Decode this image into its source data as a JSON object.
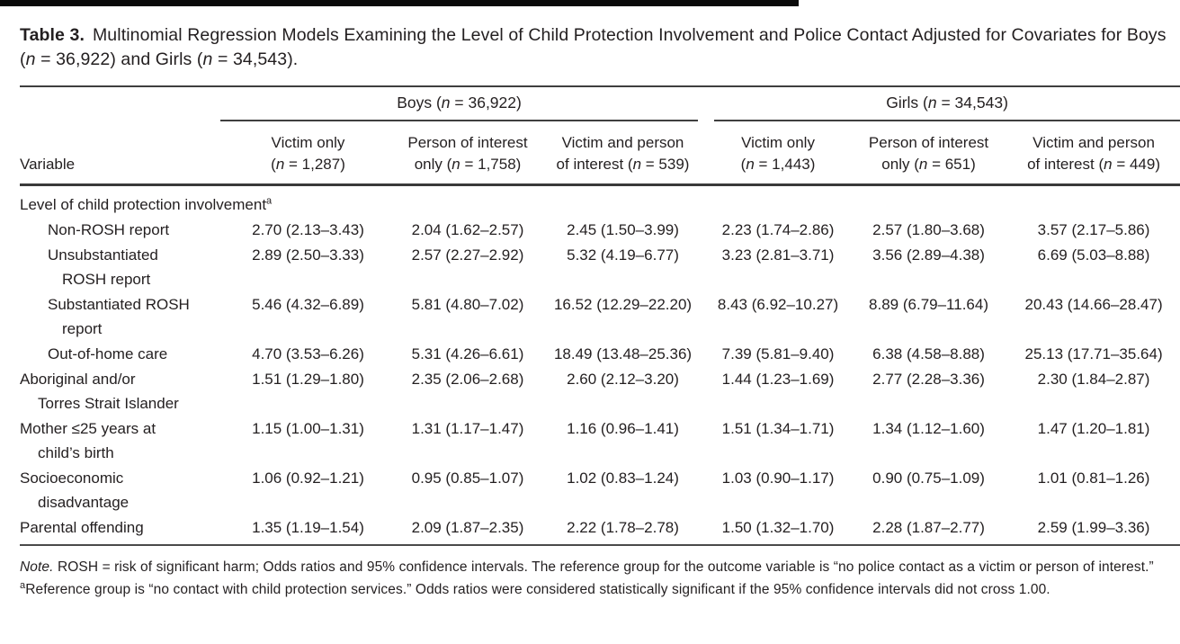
{
  "title": {
    "label": "Table 3.",
    "text": "Multinomial Regression Models Examining the Level of Child Protection Involvement and Police Contact Adjusted for Covariates for Boys (n = 36,922) and Girls (n = 34,543)."
  },
  "table": {
    "variable_header": "Variable",
    "group_headers": {
      "boys": "Boys (n = 36,922)",
      "girls": "Girls (n = 34,543)"
    },
    "column_headers": [
      {
        "line1": "Victim only",
        "line2": "(n = 1,287)"
      },
      {
        "line1": "Person of interest",
        "line2": "only (n = 1,758)"
      },
      {
        "line1": "Victim and person",
        "line2": "of interest (n = 539)"
      },
      {
        "line1": "Victim only",
        "line2": "(n = 1,443)"
      },
      {
        "line1": "Person of interest",
        "line2": "only (n = 651)"
      },
      {
        "line1": "Victim and person",
        "line2": "of interest (n = 449)"
      }
    ],
    "rows": [
      {
        "lines": [
          "Level of child protection involvement"
        ],
        "sup": "a",
        "section": true,
        "indent": 0,
        "cells": []
      },
      {
        "lines": [
          "Non-ROSH report"
        ],
        "indent": 1,
        "cells": [
          "2.70 (2.13–3.43)",
          "2.04 (1.62–2.57)",
          "2.45 (1.50–3.99)",
          "2.23 (1.74–2.86)",
          "2.57 (1.80–3.68)",
          "3.57 (2.17–5.86)"
        ]
      },
      {
        "lines": [
          "Unsubstantiated",
          "ROSH report"
        ],
        "indent": 1,
        "cells": [
          "2.89 (2.50–3.33)",
          "2.57 (2.27–2.92)",
          "5.32 (4.19–6.77)",
          "3.23 (2.81–3.71)",
          "3.56 (2.89–4.38)",
          "6.69 (5.03–8.88)"
        ]
      },
      {
        "lines": [
          "Substantiated ROSH",
          "report"
        ],
        "indent": 1,
        "cells": [
          "5.46 (4.32–6.89)",
          "5.81 (4.80–7.02)",
          "16.52 (12.29–22.20)",
          "8.43 (6.92–10.27)",
          "8.89 (6.79–11.64)",
          "20.43 (14.66–28.47)"
        ]
      },
      {
        "lines": [
          "Out-of-home care"
        ],
        "indent": 1,
        "cells": [
          "4.70 (3.53–6.26)",
          "5.31 (4.26–6.61)",
          "18.49 (13.48–25.36)",
          "7.39 (5.81–9.40)",
          "6.38 (4.58–8.88)",
          "25.13 (17.71–35.64)"
        ]
      },
      {
        "lines": [
          "Aboriginal and/or",
          "Torres Strait Islander"
        ],
        "indent": 0,
        "cells": [
          "1.51 (1.29–1.80)",
          "2.35 (2.06–2.68)",
          "2.60 (2.12–3.20)",
          "1.44 (1.23–1.69)",
          "2.77 (2.28–3.36)",
          "2.30 (1.84–2.87)"
        ]
      },
      {
        "lines": [
          "Mother ≤25 years at",
          "child’s birth"
        ],
        "indent": 0,
        "cells": [
          "1.15 (1.00–1.31)",
          "1.31 (1.17–1.47)",
          "1.16 (0.96–1.41)",
          "1.51 (1.34–1.71)",
          "1.34 (1.12–1.60)",
          "1.47 (1.20–1.81)"
        ]
      },
      {
        "lines": [
          "Socioeconomic",
          "disadvantage"
        ],
        "indent": 0,
        "cells": [
          "1.06 (0.92–1.21)",
          "0.95 (0.85–1.07)",
          "1.02 (0.83–1.24)",
          "1.03 (0.90–1.17)",
          "0.90 (0.75–1.09)",
          "1.01 (0.81–1.26)"
        ]
      },
      {
        "lines": [
          "Parental offending"
        ],
        "indent": 0,
        "cells": [
          "1.35 (1.19–1.54)",
          "2.09 (1.87–2.35)",
          "2.22 (1.78–2.78)",
          "1.50 (1.32–1.70)",
          "2.28 (1.87–2.77)",
          "2.59 (1.99–3.36)"
        ]
      }
    ]
  },
  "notes": {
    "note_label": "Note.",
    "note_text": "ROSH = risk of significant harm; Odds ratios and 95% confidence intervals. The reference group for the outcome variable is “no police contact as a victim or person of interest.”",
    "footnote_sup": "a",
    "footnote_text": "Reference group is “no contact with child protection services.” Odds ratios were considered statistically significant if the 95% confidence intervals did not cross 1.00."
  }
}
